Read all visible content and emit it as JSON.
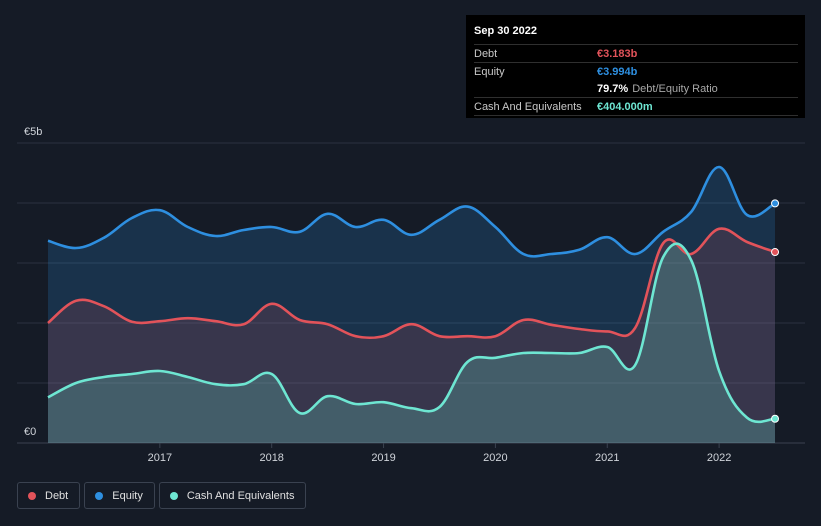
{
  "colors": {
    "debt": "#e2535a",
    "equity": "#2e8fe0",
    "cash": "#6ee6d2",
    "grid": "#2b3240",
    "axis_text": "#d0d4da"
  },
  "tooltip": {
    "date": "Sep 30 2022",
    "debt_label": "Debt",
    "debt_value": "€3.183b",
    "equity_label": "Equity",
    "equity_value": "€3.994b",
    "ratio_value": "79.7%",
    "ratio_label": "Debt/Equity Ratio",
    "cash_label": "Cash And Equivalents",
    "cash_value": "€404.000m"
  },
  "legend": [
    {
      "label": "Debt",
      "color": "#e2535a"
    },
    {
      "label": "Equity",
      "color": "#2e8fe0"
    },
    {
      "label": "Cash And Equivalents",
      "color": "#6ee6d2"
    }
  ],
  "chart_data": {
    "type": "area",
    "title": "",
    "xlabel": "",
    "ylabel": "",
    "x_ticks": [
      "2017",
      "2018",
      "2019",
      "2020",
      "2021",
      "2022"
    ],
    "x_tick_values": [
      2017.0,
      2018.0,
      2019.0,
      2020.0,
      2021.0,
      2022.0
    ],
    "y_axis_labels": [
      "€5b",
      "€0"
    ],
    "xlim": [
      2016.0,
      2022.75
    ],
    "ylim": [
      0,
      5
    ],
    "series": [
      {
        "name": "Equity",
        "color": "#2e8fe0",
        "points": [
          [
            2016.0,
            3.37
          ],
          [
            2016.25,
            3.25
          ],
          [
            2016.5,
            3.42
          ],
          [
            2016.75,
            3.75
          ],
          [
            2017.0,
            3.88
          ],
          [
            2017.25,
            3.6
          ],
          [
            2017.5,
            3.45
          ],
          [
            2017.75,
            3.55
          ],
          [
            2018.0,
            3.6
          ],
          [
            2018.25,
            3.52
          ],
          [
            2018.5,
            3.82
          ],
          [
            2018.75,
            3.6
          ],
          [
            2019.0,
            3.72
          ],
          [
            2019.25,
            3.47
          ],
          [
            2019.5,
            3.72
          ],
          [
            2019.75,
            3.94
          ],
          [
            2020.0,
            3.6
          ],
          [
            2020.25,
            3.15
          ],
          [
            2020.5,
            3.15
          ],
          [
            2020.75,
            3.22
          ],
          [
            2021.0,
            3.43
          ],
          [
            2021.25,
            3.15
          ],
          [
            2021.5,
            3.52
          ],
          [
            2021.75,
            3.85
          ],
          [
            2022.0,
            4.6
          ],
          [
            2022.25,
            3.8
          ],
          [
            2022.5,
            3.994
          ]
        ]
      },
      {
        "name": "Debt",
        "color": "#e2535a",
        "points": [
          [
            2016.0,
            2.0
          ],
          [
            2016.25,
            2.37
          ],
          [
            2016.5,
            2.28
          ],
          [
            2016.75,
            2.02
          ],
          [
            2017.0,
            2.03
          ],
          [
            2017.25,
            2.08
          ],
          [
            2017.5,
            2.03
          ],
          [
            2017.75,
            1.98
          ],
          [
            2018.0,
            2.32
          ],
          [
            2018.25,
            2.05
          ],
          [
            2018.5,
            1.98
          ],
          [
            2018.75,
            1.78
          ],
          [
            2019.0,
            1.78
          ],
          [
            2019.25,
            1.98
          ],
          [
            2019.5,
            1.78
          ],
          [
            2019.75,
            1.78
          ],
          [
            2020.0,
            1.78
          ],
          [
            2020.25,
            2.05
          ],
          [
            2020.5,
            1.97
          ],
          [
            2020.75,
            1.9
          ],
          [
            2021.0,
            1.86
          ],
          [
            2021.25,
            1.92
          ],
          [
            2021.5,
            3.33
          ],
          [
            2021.75,
            3.15
          ],
          [
            2022.0,
            3.57
          ],
          [
            2022.25,
            3.35
          ],
          [
            2022.5,
            3.183
          ]
        ]
      },
      {
        "name": "Cash And Equivalents",
        "color": "#6ee6d2",
        "points": [
          [
            2016.0,
            0.76
          ],
          [
            2016.25,
            1.0
          ],
          [
            2016.5,
            1.1
          ],
          [
            2016.75,
            1.15
          ],
          [
            2017.0,
            1.2
          ],
          [
            2017.25,
            1.1
          ],
          [
            2017.5,
            0.98
          ],
          [
            2017.75,
            0.98
          ],
          [
            2018.0,
            1.15
          ],
          [
            2018.25,
            0.5
          ],
          [
            2018.5,
            0.78
          ],
          [
            2018.75,
            0.65
          ],
          [
            2019.0,
            0.68
          ],
          [
            2019.25,
            0.58
          ],
          [
            2019.5,
            0.6
          ],
          [
            2019.75,
            1.35
          ],
          [
            2020.0,
            1.42
          ],
          [
            2020.25,
            1.5
          ],
          [
            2020.5,
            1.5
          ],
          [
            2020.75,
            1.5
          ],
          [
            2021.0,
            1.6
          ],
          [
            2021.25,
            1.3
          ],
          [
            2021.5,
            3.1
          ],
          [
            2021.75,
            3.05
          ],
          [
            2022.0,
            1.2
          ],
          [
            2022.25,
            0.42
          ],
          [
            2022.5,
            0.404
          ]
        ]
      }
    ]
  }
}
